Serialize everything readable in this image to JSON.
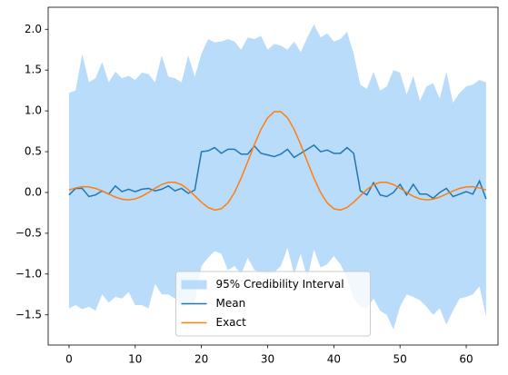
{
  "chart_data": {
    "type": "line",
    "x": [
      0,
      1,
      2,
      3,
      4,
      5,
      6,
      7,
      8,
      9,
      10,
      11,
      12,
      13,
      14,
      15,
      16,
      17,
      18,
      19,
      20,
      21,
      22,
      23,
      24,
      25,
      26,
      27,
      28,
      29,
      30,
      31,
      32,
      33,
      34,
      35,
      36,
      37,
      38,
      39,
      40,
      41,
      42,
      43,
      44,
      45,
      46,
      47,
      48,
      49,
      50,
      51,
      52,
      53,
      54,
      55,
      56,
      57,
      58,
      59,
      60,
      61,
      62,
      63
    ],
    "band": {
      "name": "95% Credibility Interval",
      "color": "#b9dcfb",
      "upper": [
        1.22,
        1.25,
        1.7,
        1.35,
        1.4,
        1.6,
        1.35,
        1.48,
        1.4,
        1.43,
        1.38,
        1.47,
        1.45,
        1.35,
        1.68,
        1.42,
        1.4,
        1.35,
        1.68,
        1.42,
        1.7,
        1.88,
        1.84,
        1.85,
        1.88,
        1.85,
        1.75,
        1.9,
        1.88,
        1.92,
        1.75,
        1.82,
        1.8,
        1.75,
        1.85,
        1.72,
        1.9,
        2.06,
        1.9,
        1.95,
        1.85,
        1.88,
        1.97,
        1.7,
        1.32,
        1.27,
        1.48,
        1.25,
        1.3,
        1.5,
        1.47,
        1.2,
        1.43,
        1.12,
        1.3,
        1.34,
        1.15,
        1.48,
        1.1,
        1.22,
        1.3,
        1.32,
        1.38,
        1.35
      ],
      "lower": [
        -1.42,
        -1.38,
        -1.43,
        -1.4,
        -1.45,
        -1.25,
        -1.35,
        -1.28,
        -1.3,
        -1.22,
        -1.38,
        -1.38,
        -1.42,
        -1.12,
        -1.25,
        -1.25,
        -1.3,
        -1.4,
        -1.38,
        -1.35,
        -0.9,
        -0.8,
        -0.72,
        -0.75,
        -0.95,
        -0.9,
        -1.0,
        -0.8,
        -0.95,
        -0.98,
        -1.0,
        -0.98,
        -0.9,
        -0.68,
        -1.0,
        -0.75,
        -1.05,
        -0.7,
        -0.92,
        -0.88,
        -0.78,
        -0.88,
        -1.05,
        -1.3,
        -1.4,
        -1.42,
        -1.3,
        -1.45,
        -1.5,
        -1.68,
        -1.4,
        -1.25,
        -1.28,
        -1.32,
        -1.4,
        -1.5,
        -1.42,
        -1.62,
        -1.45,
        -1.3,
        -1.28,
        -1.25,
        -1.15,
        -1.52
      ]
    },
    "series": [
      {
        "name": "Mean",
        "color": "#1f77b4",
        "values": [
          -0.03,
          0.05,
          0.05,
          -0.05,
          -0.03,
          0.02,
          -0.02,
          0.08,
          0.01,
          0.04,
          0.01,
          0.04,
          0.05,
          0.02,
          0.04,
          0.08,
          0.02,
          0.05,
          -0.01,
          0.03,
          0.5,
          0.51,
          0.55,
          0.48,
          0.53,
          0.53,
          0.47,
          0.47,
          0.57,
          0.48,
          0.46,
          0.44,
          0.47,
          0.53,
          0.43,
          0.48,
          0.53,
          0.58,
          0.5,
          0.52,
          0.48,
          0.48,
          0.55,
          0.48,
          0.02,
          -0.03,
          0.12,
          -0.03,
          -0.05,
          0.0,
          0.1,
          -0.03,
          0.1,
          -0.02,
          -0.02,
          -0.07,
          0.0,
          0.05,
          -0.05,
          -0.02,
          0.01,
          -0.02,
          0.14,
          -0.08
        ]
      },
      {
        "name": "Exact",
        "color": "#ff7f0e",
        "values": [
          0.031,
          0.056,
          0.07,
          0.068,
          0.05,
          0.019,
          -0.019,
          -0.056,
          -0.082,
          -0.091,
          -0.079,
          -0.047,
          0,
          0.052,
          0.097,
          0.125,
          0.125,
          0.095,
          0.037,
          -0.04,
          -0.119,
          -0.184,
          -0.216,
          -0.2,
          -0.128,
          0,
          0.175,
          0.378,
          0.587,
          0.774,
          0.915,
          0.99,
          0.99,
          0.915,
          0.774,
          0.587,
          0.378,
          0.175,
          0,
          -0.128,
          -0.2,
          -0.216,
          -0.184,
          -0.119,
          -0.04,
          0.037,
          0.095,
          0.125,
          0.125,
          0.097,
          0.052,
          0,
          -0.047,
          -0.079,
          -0.091,
          -0.082,
          -0.056,
          -0.019,
          0.019,
          0.05,
          0.068,
          0.07,
          0.056,
          0.031
        ]
      }
    ],
    "xlim": [
      -3.15,
      64.8
    ],
    "ylim": [
      -1.87,
      2.27
    ],
    "xticks": [
      0,
      10,
      20,
      30,
      40,
      50,
      60
    ],
    "yticks": [
      {
        "value": -1.5,
        "label": "−1.5"
      },
      {
        "value": -1,
        "label": "−1.0"
      },
      {
        "value": -0.5,
        "label": "−0.5"
      },
      {
        "value": 0,
        "label": "0.0"
      },
      0.5,
      {
        "value": 1,
        "label": "1.0"
      },
      1.5,
      {
        "value": 2,
        "label": "2.0"
      }
    ],
    "legend": "lower center"
  }
}
